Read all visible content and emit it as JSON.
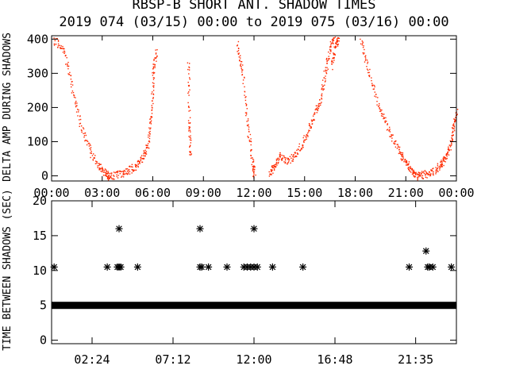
{
  "colors": {
    "background": "#ffffff",
    "axes": "#000000",
    "top_series": "#ff2a00",
    "bottom_series": "#000000"
  },
  "chart_data": [
    {
      "type": "scatter",
      "title": "RBSP-B SHORT ANT. SHADOW TIMES",
      "subtitle": "2019 074 (03/15) 00:00 to 2019 075 (03/16) 00:00",
      "ylabel": "DELTA AMP DURING SHADOWS",
      "xlabel": "",
      "xlim": [
        0,
        24
      ],
      "ylim": [
        -15,
        410
      ],
      "x_ticks": [
        0,
        3,
        6,
        9,
        12,
        15,
        18,
        21,
        24
      ],
      "x_tick_labels": [
        "00:00",
        "03:00",
        "06:00",
        "09:00",
        "12:00",
        "15:00",
        "18:00",
        "21:00",
        "00:00"
      ],
      "y_ticks": [
        0,
        100,
        200,
        300,
        400
      ],
      "y_tick_labels": [
        "0",
        "100",
        "200",
        "300",
        "400"
      ],
      "grid": false,
      "segments": [
        {
          "x": [
            0.1,
            0.7,
            1.2,
            1.7,
            2.3,
            2.8,
            3.2,
            3.4
          ],
          "y": [
            400,
            370,
            260,
            150,
            70,
            25,
            8,
            0
          ]
        },
        {
          "x": [
            3.4,
            4.0,
            4.5,
            5.0,
            5.4,
            5.7,
            5.9,
            6.0,
            6.2
          ],
          "y": [
            0,
            5,
            15,
            30,
            55,
            90,
            180,
            300,
            370
          ]
        },
        {
          "x": [
            8.1,
            8.15,
            8.2
          ],
          "y": [
            340,
            160,
            55
          ]
        },
        {
          "x": [
            11.0,
            11.3,
            11.6,
            11.9,
            12.0
          ],
          "y": [
            390,
            300,
            150,
            40,
            0
          ]
        },
        {
          "x": [
            12.9,
            13.2,
            13.5,
            14.0,
            14.5,
            15.0,
            15.5,
            15.9,
            16.2,
            16.5,
            16.8
          ],
          "y": [
            5,
            30,
            60,
            45,
            65,
            110,
            170,
            220,
            300,
            380,
            420
          ]
        },
        {
          "x": [
            16.6,
            16.8,
            17.0
          ],
          "y": [
            320,
            380,
            410
          ]
        },
        {
          "x": [
            18.3,
            18.8,
            19.4,
            20.0,
            20.6,
            21.0,
            21.3,
            21.6
          ],
          "y": [
            400,
            300,
            200,
            130,
            70,
            40,
            15,
            0
          ]
        },
        {
          "x": [
            21.6,
            22.0,
            22.5,
            23.0,
            23.3,
            23.6,
            23.8,
            24.0
          ],
          "y": [
            0,
            5,
            12,
            30,
            50,
            85,
            140,
            190
          ]
        }
      ]
    },
    {
      "type": "scatter",
      "title": "",
      "ylabel": "TIME BETWEEN SHADOWS (SEC)",
      "xlabel": "",
      "xlim": [
        0,
        24
      ],
      "ylim": [
        -0.5,
        20
      ],
      "x_ticks": [
        2.4,
        7.2,
        12,
        16.8,
        21.5833
      ],
      "x_tick_labels": [
        "02:24",
        "07:12",
        "12:00",
        "16:48",
        "21:35"
      ],
      "y_ticks": [
        0,
        5,
        10,
        15,
        20
      ],
      "y_tick_labels": [
        "0",
        "5",
        "10",
        "15",
        "20"
      ],
      "grid": false,
      "baseline": {
        "x_start": 0,
        "x_end": 24,
        "y": 5
      },
      "points": [
        {
          "x": 0.15,
          "y": 10.5
        },
        {
          "x": 3.3,
          "y": 10.5
        },
        {
          "x": 3.9,
          "y": 10.5
        },
        {
          "x": 4.0,
          "y": 10.5
        },
        {
          "x": 4.1,
          "y": 10.5
        },
        {
          "x": 4.0,
          "y": 16
        },
        {
          "x": 5.1,
          "y": 10.5
        },
        {
          "x": 8.8,
          "y": 10.5
        },
        {
          "x": 8.9,
          "y": 10.5
        },
        {
          "x": 8.8,
          "y": 16
        },
        {
          "x": 9.3,
          "y": 10.5
        },
        {
          "x": 10.4,
          "y": 10.5
        },
        {
          "x": 11.4,
          "y": 10.5
        },
        {
          "x": 11.6,
          "y": 10.5
        },
        {
          "x": 11.8,
          "y": 10.5
        },
        {
          "x": 12.0,
          "y": 10.5
        },
        {
          "x": 12.2,
          "y": 10.5
        },
        {
          "x": 12.0,
          "y": 16
        },
        {
          "x": 13.1,
          "y": 10.5
        },
        {
          "x": 14.9,
          "y": 10.5
        },
        {
          "x": 21.2,
          "y": 10.5
        },
        {
          "x": 22.3,
          "y": 10.5
        },
        {
          "x": 22.4,
          "y": 10.5
        },
        {
          "x": 22.2,
          "y": 12.8
        },
        {
          "x": 22.6,
          "y": 10.5
        },
        {
          "x": 23.7,
          "y": 10.5
        }
      ]
    }
  ]
}
